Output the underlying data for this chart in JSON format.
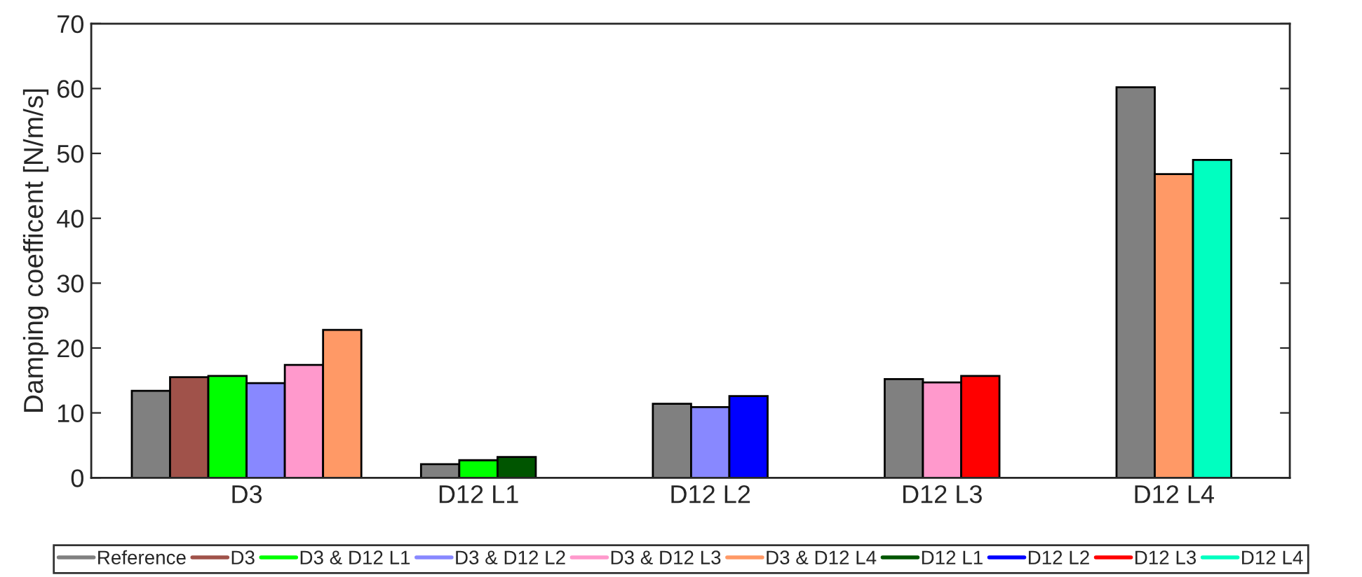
{
  "chart_data": {
    "type": "bar",
    "ylabel": "Damping coefficent [N/m/s]",
    "categories": [
      "D3",
      "D12 L1",
      "D12 L2",
      "D12 L3",
      "D12 L4"
    ],
    "series": [
      {
        "name": "Reference",
        "color": "#808080",
        "values": [
          13.4,
          2.1,
          11.4,
          15.2,
          60.2
        ]
      },
      {
        "name": "D3",
        "color": "#a0524a",
        "values": [
          15.5,
          null,
          null,
          null,
          null
        ]
      },
      {
        "name": "D3 & D12 L1",
        "color": "#00ff00",
        "values": [
          15.7,
          2.7,
          null,
          null,
          null
        ]
      },
      {
        "name": "D3 & D12 L2",
        "color": "#8888ff",
        "values": [
          14.6,
          null,
          10.9,
          null,
          null
        ]
      },
      {
        "name": "D3 & D12 L3",
        "color": "#ff99cc",
        "values": [
          17.4,
          null,
          null,
          14.7,
          null
        ]
      },
      {
        "name": "D3 & D12 L4",
        "color": "#ff9966",
        "values": [
          22.8,
          null,
          null,
          null,
          46.8
        ]
      },
      {
        "name": "D12 L1",
        "color": "#005500",
        "values": [
          null,
          3.2,
          null,
          null,
          null
        ]
      },
      {
        "name": "D12 L2",
        "color": "#0000ff",
        "values": [
          null,
          null,
          12.6,
          null,
          null
        ]
      },
      {
        "name": "D12 L3",
        "color": "#ff0000",
        "values": [
          null,
          null,
          null,
          15.7,
          null
        ]
      },
      {
        "name": "D12 L4",
        "color": "#00ffc0",
        "values": [
          null,
          null,
          null,
          null,
          49.0
        ]
      }
    ],
    "ylim": [
      0,
      70
    ],
    "yticks": [
      0,
      10,
      20,
      30,
      40,
      50,
      60,
      70
    ],
    "grid": false,
    "legend": "bottom"
  }
}
